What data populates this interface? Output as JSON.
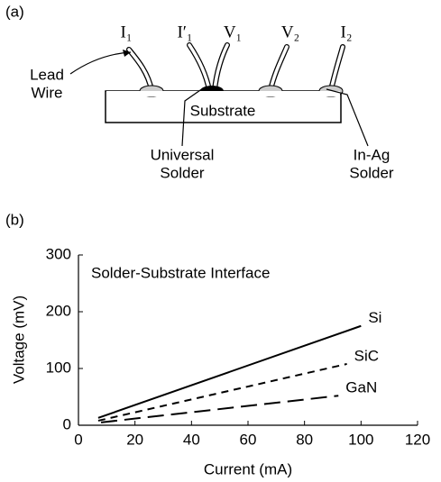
{
  "diagram": {
    "panel_label": "(a)",
    "leads": [
      "I₁",
      "I′₁",
      "V₁",
      "V₂",
      "I₂"
    ],
    "lead_wire": [
      "Lead",
      "Wire"
    ],
    "substrate": "Substrate",
    "universal_solder": [
      "Universal",
      "Solder"
    ],
    "in_ag_solder": [
      "In-Ag",
      "Solder"
    ]
  },
  "chart_data": {
    "type": "line",
    "panel_label": "(b)",
    "annotation": "Solder-Substrate Interface",
    "x_label": "Current (mA)",
    "y_label": "Voltage (mV)",
    "xlim": [
      0,
      120
    ],
    "ylim": [
      0,
      300
    ],
    "xticks": [
      0,
      20,
      40,
      60,
      80,
      100,
      120
    ],
    "yticks": [
      0,
      100,
      200,
      300
    ],
    "series": [
      {
        "name": "Si",
        "color": "#000000",
        "dash": "solid",
        "x": [
          7,
          100
        ],
        "values": [
          13,
          175
        ]
      },
      {
        "name": "SiC",
        "color": "#000000",
        "dash": "dashed",
        "x": [
          7,
          95
        ],
        "values": [
          8,
          108
        ]
      },
      {
        "name": "GaN",
        "color": "#000000",
        "dash": "long-dashed",
        "x": [
          8,
          92
        ],
        "values": [
          5,
          52
        ]
      }
    ]
  }
}
